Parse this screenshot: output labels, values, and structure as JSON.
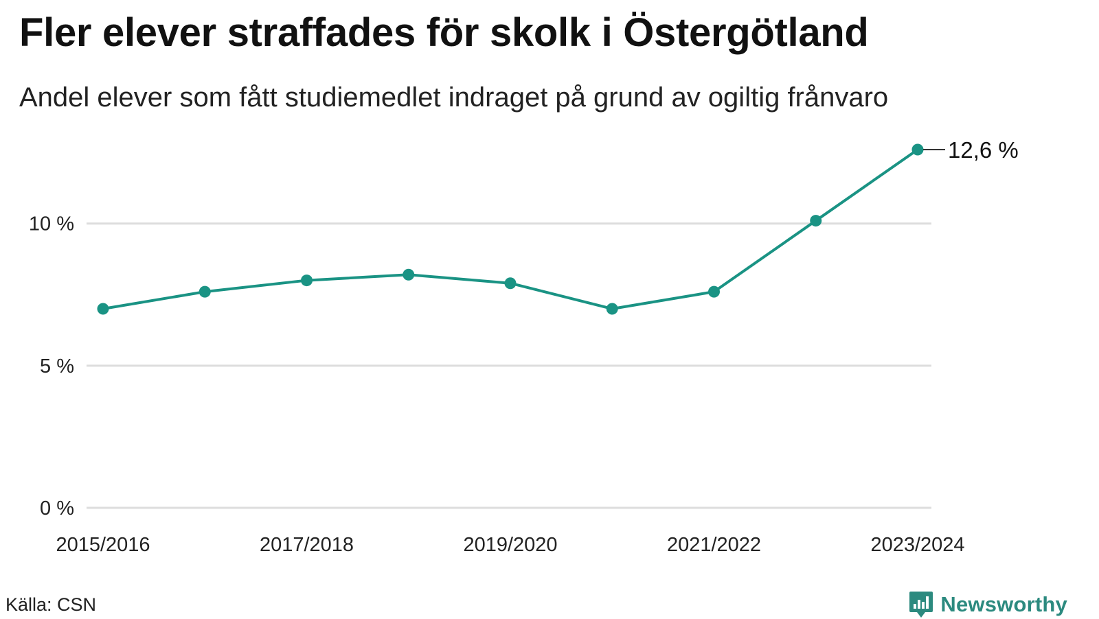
{
  "header": {
    "title": "Fler elever straffades för skolk i Östergötland",
    "subtitle": "Andel elever som fått studiemedlet indraget på grund av ogiltig frånvaro"
  },
  "footer": {
    "source": "Källa: CSN",
    "logo_text": "Newsworthy"
  },
  "colors": {
    "line": "#1a9384",
    "grid": "#dddddd",
    "logo": "#2c8a7f"
  },
  "chart_data": {
    "type": "line",
    "x": [
      "2015/2016",
      "2016/2017",
      "2017/2018",
      "2018/2019",
      "2019/2020",
      "2020/2021",
      "2021/2022",
      "2022/2023",
      "2023/2024"
    ],
    "x_tick_labels": [
      "2015/2016",
      "",
      "2017/2018",
      "",
      "2019/2020",
      "",
      "2021/2022",
      "",
      "2023/2024"
    ],
    "series": [
      {
        "values": [
          7.0,
          7.6,
          8.0,
          8.2,
          7.9,
          7.0,
          7.6,
          10.1,
          12.6
        ]
      }
    ],
    "ylim": [
      0,
      12.6
    ],
    "y_ticks": [
      {
        "value": 0,
        "label": "0 %"
      },
      {
        "value": 5,
        "label": "5 %"
      },
      {
        "value": 10,
        "label": "10 %"
      }
    ],
    "end_label": "12,6 %",
    "grid": true,
    "legend": "none"
  }
}
